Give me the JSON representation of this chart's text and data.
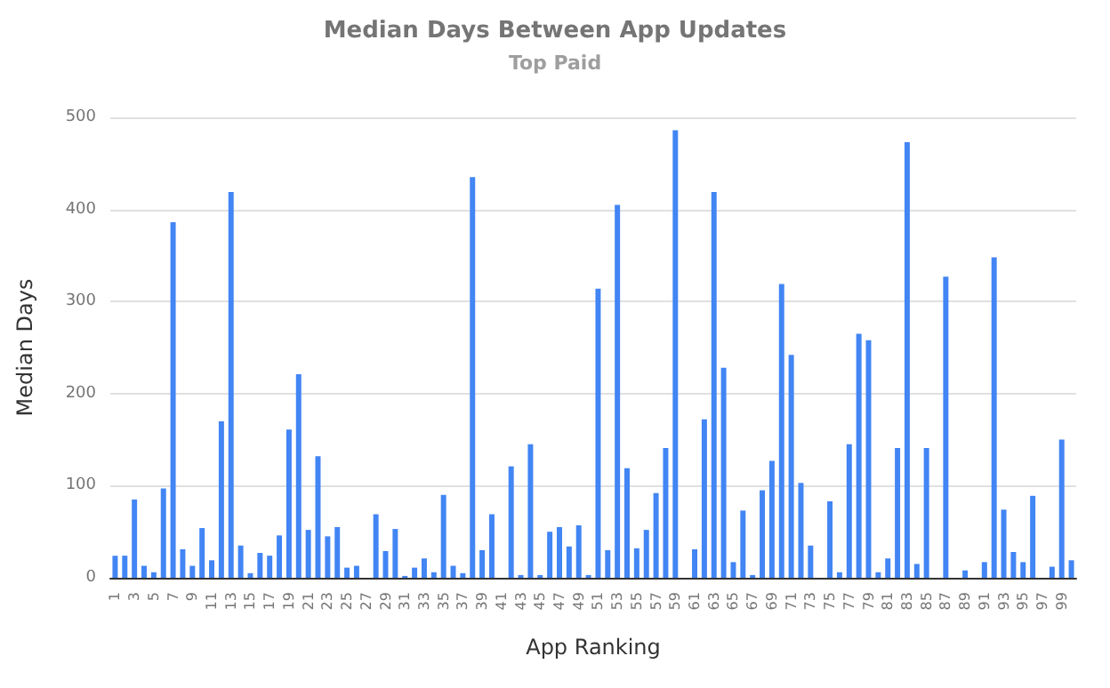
{
  "chart_data": {
    "type": "bar",
    "title": "Median Days Between App Updates",
    "subtitle": "Top Paid",
    "xlabel": "App Ranking",
    "ylabel": "Median Days",
    "categories": [
      "1",
      null,
      "3",
      null,
      "5",
      null,
      "7",
      null,
      "9",
      null,
      "11",
      null,
      "13",
      null,
      "15",
      null,
      "17",
      null,
      "19",
      null,
      "21",
      null,
      "23",
      null,
      "25",
      null,
      "27",
      null,
      "29",
      null,
      "31",
      null,
      "33",
      null,
      "35",
      null,
      "37",
      null,
      "39",
      null,
      "41",
      null,
      "43",
      null,
      "45",
      null,
      "47",
      null,
      "49",
      null,
      "51",
      null,
      "53",
      null,
      "55",
      null,
      "57",
      null,
      "59",
      null,
      "61",
      null,
      "63",
      null,
      "65",
      null,
      "67",
      null,
      "69",
      null,
      "71",
      null,
      "73",
      null,
      "75",
      null,
      "77",
      null,
      "79",
      null,
      "81",
      null,
      "83",
      null,
      "85",
      null,
      "87",
      null,
      "89",
      null,
      "91",
      null,
      "93",
      null,
      "95",
      null,
      "97",
      null,
      "99",
      null
    ],
    "values": [
      24,
      24,
      85,
      13,
      6,
      97,
      386,
      31,
      13,
      54,
      19,
      170,
      419,
      35,
      5,
      27,
      24,
      46,
      161,
      221,
      52,
      132,
      45,
      55,
      11,
      13,
      null,
      69,
      29,
      53,
      2,
      11,
      21,
      6,
      90,
      13,
      5,
      435,
      30,
      69,
      null,
      121,
      3,
      145,
      3,
      50,
      55,
      34,
      57,
      3,
      314,
      30,
      405,
      119,
      32,
      52,
      92,
      141,
      486,
      null,
      31,
      172,
      419,
      228,
      17,
      73,
      3,
      95,
      127,
      319,
      242,
      103,
      35,
      null,
      83,
      6,
      145,
      265,
      258,
      6,
      21,
      141,
      473,
      15,
      141,
      null,
      327,
      null,
      8,
      null,
      17,
      348,
      74,
      28,
      17,
      89,
      null,
      12,
      150,
      19
    ],
    "color": "#4285f4",
    "ylim": [
      0,
      500
    ],
    "yticks": [
      0,
      100,
      200,
      300,
      400,
      500
    ],
    "grid": "y"
  }
}
